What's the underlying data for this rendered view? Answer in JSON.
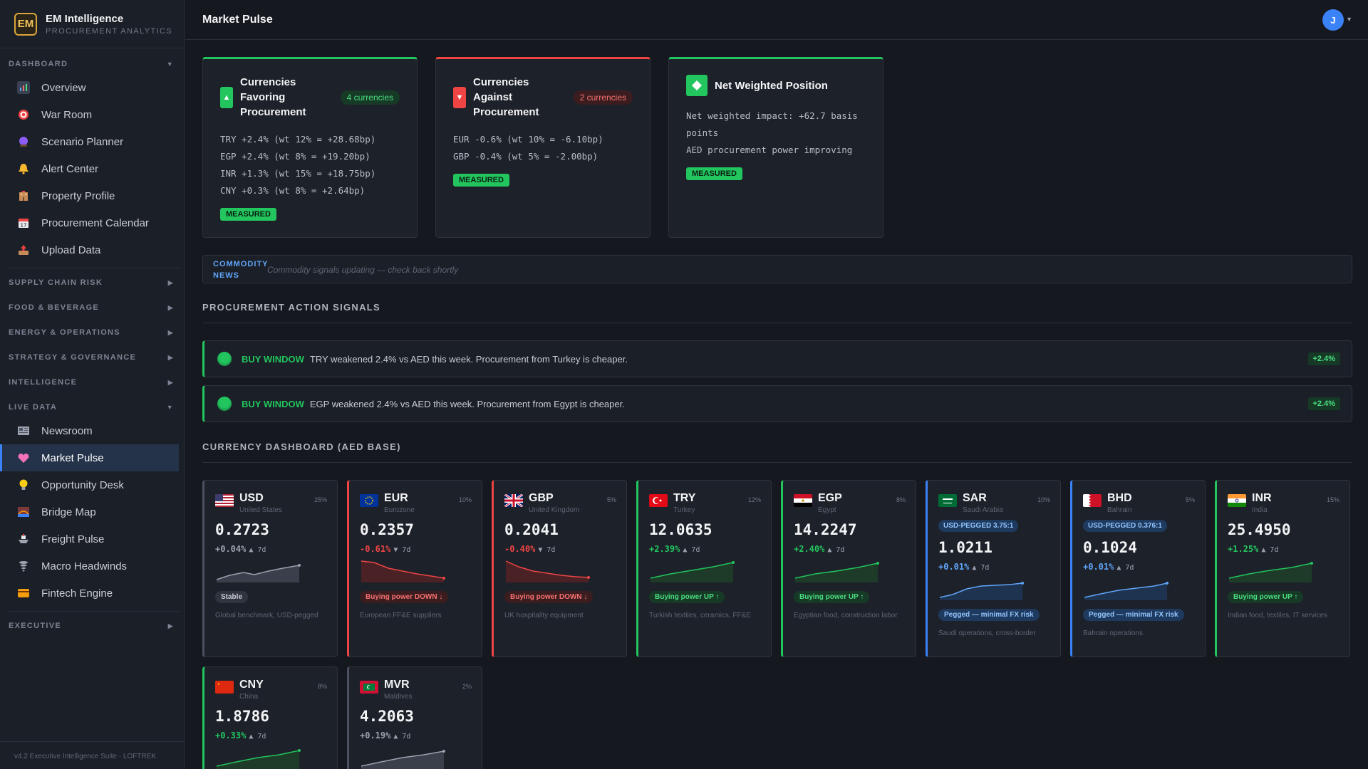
{
  "brand": {
    "logo": "EM",
    "title": "EM Intelligence",
    "subtitle": "PROCUREMENT ANALYTICS"
  },
  "sidebar": {
    "dashboard_label": "DASHBOARD",
    "dashboard_items": [
      {
        "label": "Overview",
        "icon": "bar-chart-icon"
      },
      {
        "label": "War Room",
        "icon": "target-icon"
      },
      {
        "label": "Scenario Planner",
        "icon": "crystal-ball-icon"
      },
      {
        "label": "Alert Center",
        "icon": "bell-icon"
      },
      {
        "label": "Property Profile",
        "icon": "building-icon"
      },
      {
        "label": "Procurement Calendar",
        "icon": "calendar-icon"
      },
      {
        "label": "Upload Data",
        "icon": "upload-tray-icon"
      }
    ],
    "collapsed_sections": [
      "SUPPLY CHAIN RISK",
      "FOOD & BEVERAGE",
      "ENERGY & OPERATIONS",
      "STRATEGY & GOVERNANCE",
      "INTELLIGENCE"
    ],
    "live_label": "LIVE DATA",
    "live_items": [
      {
        "label": "Newsroom",
        "icon": "newspaper-icon"
      },
      {
        "label": "Market Pulse",
        "icon": "heart-pulse-icon"
      },
      {
        "label": "Opportunity Desk",
        "icon": "lightbulb-icon"
      },
      {
        "label": "Bridge Map",
        "icon": "bridge-icon"
      },
      {
        "label": "Freight Pulse",
        "icon": "ship-icon"
      },
      {
        "label": "Macro Headwinds",
        "icon": "tornado-icon"
      },
      {
        "label": "Fintech Engine",
        "icon": "card-icon"
      }
    ],
    "executive_label": "EXECUTIVE",
    "footer": "v4.2 Executive Intelligence Suite · LOFTREK"
  },
  "header": {
    "title": "Market Pulse",
    "avatar": "J"
  },
  "summary": {
    "favoring": {
      "title": "Currencies Favoring Procurement",
      "count": "4 currencies",
      "lines": [
        "TRY +2.4% (wt 12% = +28.68bp)",
        "EGP +2.4% (wt 8% = +19.20bp)",
        "INR +1.3% (wt 15% = +18.75bp)",
        "CNY +0.3% (wt 8% = +2.64bp)"
      ],
      "badge": "MEASURED"
    },
    "against": {
      "title": "Currencies Against Procurement",
      "count": "2 currencies",
      "lines": [
        "EUR -0.6% (wt 10% = -6.10bp)",
        "GBP -0.4% (wt 5% = -2.00bp)"
      ],
      "badge": "MEASURED"
    },
    "net": {
      "title": "Net Weighted Position",
      "lines": [
        "Net weighted impact: +62.7 basis points",
        "AED procurement power improving"
      ],
      "badge": "MEASURED"
    }
  },
  "news": {
    "label": "COMMODITY NEWS",
    "text": "Commodity signals updating — check back shortly"
  },
  "signals_title": "PROCUREMENT ACTION SIGNALS",
  "signals": [
    {
      "type": "BUY WINDOW",
      "text": "TRY weakened 2.4% vs AED this week. Procurement from Turkey is cheaper.",
      "badge": "+2.4%"
    },
    {
      "type": "BUY WINDOW",
      "text": "EGP weakened 2.4% vs AED this week. Procurement from Egypt is cheaper.",
      "badge": "+2.4%"
    }
  ],
  "currency_title": "CURRENCY DASHBOARD (AED BASE)",
  "currencies": [
    {
      "code": "USD",
      "country": "United States",
      "weight": "25%",
      "rate": "0.2723",
      "change": "+0.04%",
      "period": "▲ 7d",
      "dir": "neutral",
      "badge": "Stable",
      "note": "Global benchmark, USD-pegged",
      "peg": ""
    },
    {
      "code": "EUR",
      "country": "Eurozone",
      "weight": "10%",
      "rate": "0.2357",
      "change": "-0.61%",
      "period": "▼ 7d",
      "dir": "down",
      "badge": "Buying power DOWN ↓",
      "note": "European FF&E suppliers",
      "peg": ""
    },
    {
      "code": "GBP",
      "country": "United Kingdom",
      "weight": "5%",
      "rate": "0.2041",
      "change": "-0.40%",
      "period": "▼ 7d",
      "dir": "down",
      "badge": "Buying power DOWN ↓",
      "note": "UK hospitality equipment",
      "peg": ""
    },
    {
      "code": "TRY",
      "country": "Turkey",
      "weight": "12%",
      "rate": "12.0635",
      "change": "+2.39%",
      "period": "▲ 7d",
      "dir": "up",
      "badge": "Buying power UP ↑",
      "note": "Turkish textiles, ceramics, FF&E",
      "peg": ""
    },
    {
      "code": "EGP",
      "country": "Egypt",
      "weight": "8%",
      "rate": "14.2247",
      "change": "+2.40%",
      "period": "▲ 7d",
      "dir": "up",
      "badge": "Buying power UP ↑",
      "note": "Egyptian food, construction labor",
      "peg": ""
    },
    {
      "code": "SAR",
      "country": "Saudi Arabia",
      "weight": "10%",
      "rate": "1.0211",
      "change": "+0.01%",
      "period": "▲ 7d",
      "dir": "peg",
      "badge": "Pegged — minimal FX risk",
      "note": "Saudi operations, cross-border",
      "peg": "USD-PEGGED 3.75:1"
    },
    {
      "code": "BHD",
      "country": "Bahrain",
      "weight": "5%",
      "rate": "0.1024",
      "change": "+0.01%",
      "period": "▲ 7d",
      "dir": "peg",
      "badge": "Pegged — minimal FX risk",
      "note": "Bahrain operations",
      "peg": "USD-PEGGED 0.376:1"
    },
    {
      "code": "INR",
      "country": "India",
      "weight": "15%",
      "rate": "25.4950",
      "change": "+1.25%",
      "period": "▲ 7d",
      "dir": "up",
      "badge": "Buying power UP ↑",
      "note": "Indian food, textiles, IT services",
      "peg": ""
    },
    {
      "code": "CNY",
      "country": "China",
      "weight": "8%",
      "rate": "1.8786",
      "change": "+0.33%",
      "period": "▲ 7d",
      "dir": "up",
      "badge": "",
      "note": "",
      "peg": ""
    },
    {
      "code": "MVR",
      "country": "Maldives",
      "weight": "2%",
      "rate": "4.2063",
      "change": "+0.19%",
      "period": "▲ 7d",
      "dir": "neutral",
      "badge": "",
      "note": "",
      "peg": ""
    }
  ],
  "colors": {
    "accent": "#3b82f6",
    "positive": "#22c55e",
    "negative": "#ef4444",
    "brand": "#d9a63b"
  }
}
